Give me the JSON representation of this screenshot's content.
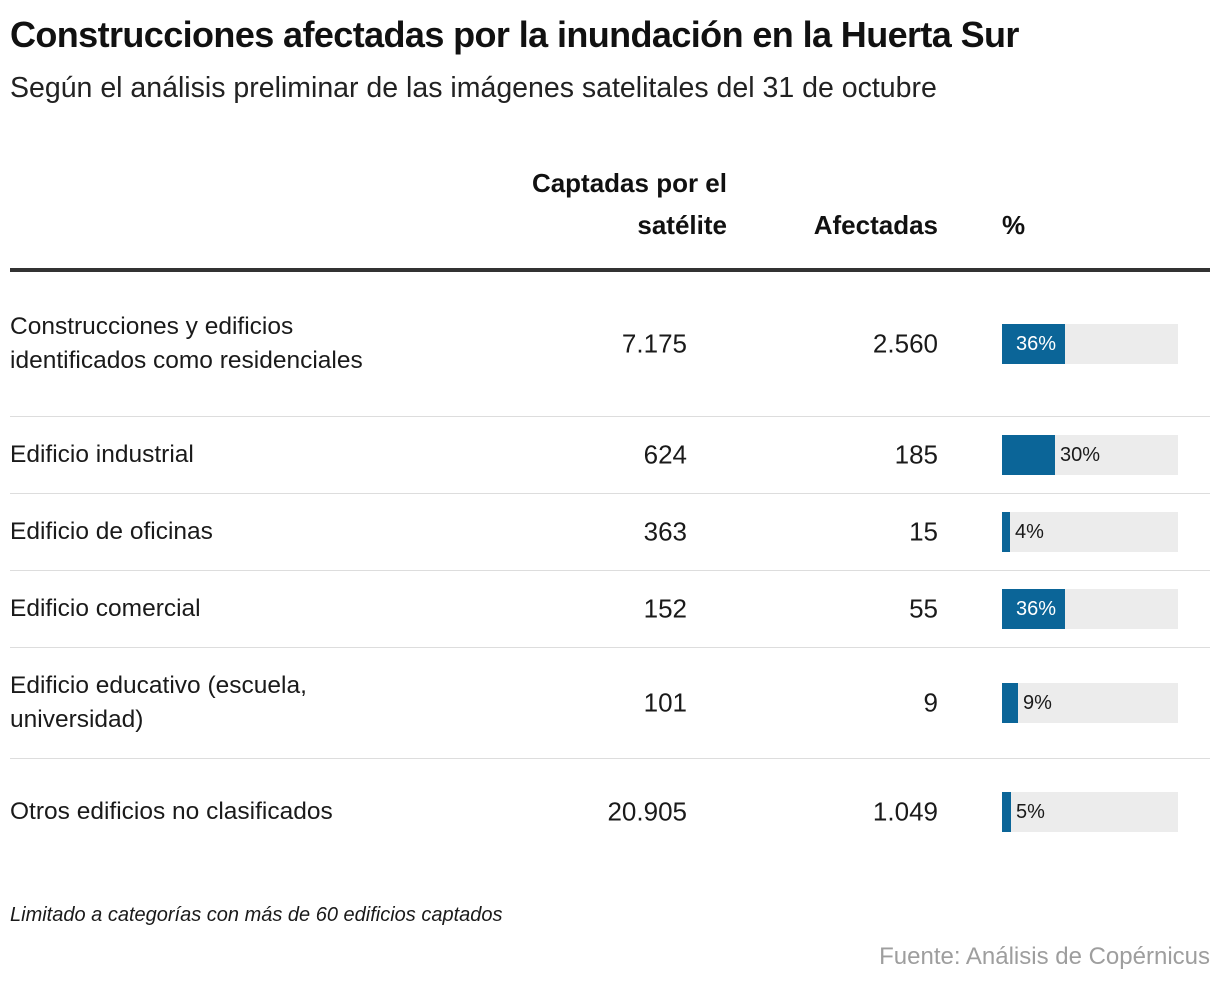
{
  "title": "Construcciones afectadas por la inundación en la Huerta Sur",
  "subtitle": "Según el análisis preliminar de las imágenes satelitales del 31 de octubre",
  "columns": {
    "captadas": "Captadas por el satélite",
    "afectadas": "Afectadas",
    "pct": "%"
  },
  "colors": {
    "bar": "#0b6598",
    "track": "#ececec"
  },
  "chart_data": {
    "type": "table",
    "title": "Construcciones afectadas por la inundación en la Huerta Sur",
    "subtitle": "Según el análisis preliminar de las imágenes satelitales del 31 de octubre",
    "columns": [
      "Captadas por el satélite",
      "Afectadas",
      "%"
    ],
    "rows": [
      {
        "category": "Construcciones y edificios identificados como residenciales",
        "captadas": "7.175",
        "afectadas": "2.560",
        "pct": 36,
        "pct_label": "36%"
      },
      {
        "category": "Edificio industrial",
        "captadas": "624",
        "afectadas": "185",
        "pct": 30,
        "pct_label": "30%"
      },
      {
        "category": "Edificio de oficinas",
        "captadas": "363",
        "afectadas": "15",
        "pct": 4,
        "pct_label": "4%"
      },
      {
        "category": "Edificio comercial",
        "captadas": "152",
        "afectadas": "55",
        "pct": 36,
        "pct_label": "36%"
      },
      {
        "category": "Edificio educativo (escuela, universidad)",
        "captadas": "101",
        "afectadas": "9",
        "pct": 9,
        "pct_label": "9%"
      },
      {
        "category": "Otros edificios no clasificados",
        "captadas": "20.905",
        "afectadas": "1.049",
        "pct": 5,
        "pct_label": "5%"
      }
    ]
  },
  "note": "Limitado a categorías con más de 60 edificios captados",
  "source": "Fuente: Análisis de Copérnicus"
}
